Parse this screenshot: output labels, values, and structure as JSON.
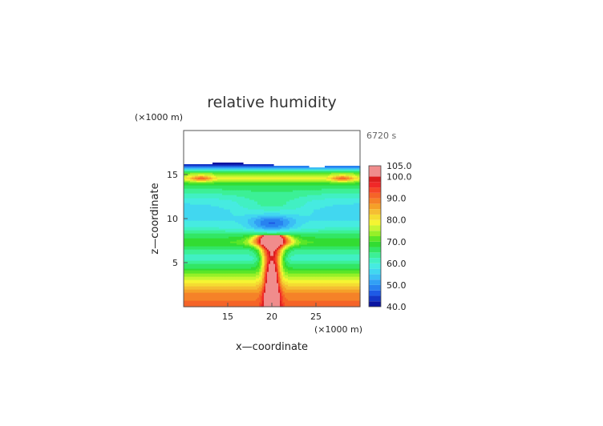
{
  "chart_data": {
    "type": "heatmap",
    "title": "relative humidity",
    "xlabel": "x—coordinate",
    "ylabel": "z—coordinate",
    "x_unit": "(×1000 m)",
    "y_unit": "(×1000 m)",
    "time_label": "6720 s",
    "xlim": [
      10,
      30
    ],
    "ylim": [
      0,
      20
    ],
    "x_ticks": [
      "15",
      "20",
      "25"
    ],
    "x_tick_values": [
      15,
      20,
      25
    ],
    "y_ticks": [
      "5",
      "10",
      "15"
    ],
    "y_tick_values": [
      5,
      10,
      15
    ],
    "colorbar": {
      "range": [
        40,
        105
      ],
      "labels": [
        "105.0",
        "100.0",
        "90.0",
        "80.0",
        "70.0",
        "60.0",
        "50.0",
        "40.0"
      ],
      "label_values": [
        105,
        100,
        90,
        80,
        70,
        60,
        50,
        40
      ],
      "levels": [
        40,
        42.5,
        45,
        47.5,
        50,
        52.5,
        55,
        57.5,
        60,
        62.5,
        65,
        67.5,
        70,
        72.5,
        75,
        77.5,
        80,
        82.5,
        85,
        87.5,
        90,
        92.5,
        95,
        97.5,
        100,
        105
      ],
      "colors": [
        "#0a14a0",
        "#1437c8",
        "#1e5ae6",
        "#2882f0",
        "#32a0f5",
        "#3cbef5",
        "#41d7f0",
        "#46ebe1",
        "#41f0c3",
        "#3cf096",
        "#32e664",
        "#32dc32",
        "#5ae628",
        "#96f028",
        "#c8f532",
        "#f5f532",
        "#f5dc32",
        "#f5be32",
        "#f5a028",
        "#f58228",
        "#f56428",
        "#f54628",
        "#f02828",
        "#dc1e1e",
        "#f08c8c"
      ]
    }
  }
}
